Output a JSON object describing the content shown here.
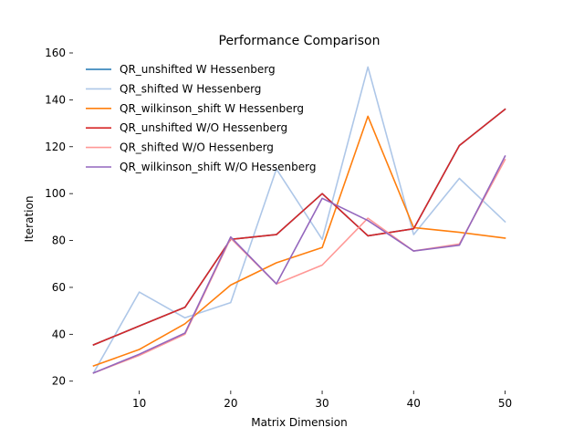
{
  "chart_data": {
    "type": "line",
    "title": "Performance Comparison",
    "xlabel": "Matrix Dimension",
    "ylabel": "Iteration",
    "xlim": [
      2.75,
      52.25
    ],
    "ylim": [
      16,
      160
    ],
    "xticks": [
      10,
      20,
      30,
      40,
      50
    ],
    "yticks": [
      20,
      40,
      60,
      80,
      100,
      120,
      140,
      160
    ],
    "grid": false,
    "legend_placement": "top-left",
    "x": [
      5,
      10,
      15,
      20,
      25,
      30,
      35,
      40,
      45,
      50
    ],
    "series": [
      {
        "name": "QR_unshifted W Hessenberg",
        "color": "#1f77b4",
        "values": [
          35.5,
          43.5,
          51.5,
          80.5,
          82.5,
          100,
          82,
          85,
          120.5,
          136
        ]
      },
      {
        "name": "QR_shifted W Hessenberg",
        "color": "#aec7e8",
        "values": [
          23.5,
          58,
          47,
          53.5,
          110.5,
          80.5,
          154,
          82.5,
          106.5,
          88
        ]
      },
      {
        "name": "QR_wilkinson_shift W Hessenberg",
        "color": "#ff7f0e",
        "values": [
          26.5,
          33.5,
          44.5,
          61,
          70.5,
          77,
          133,
          85.5,
          83.5,
          81
        ]
      },
      {
        "name": "QR_unshifted W/O Hessenberg",
        "color": "#d62728",
        "values": [
          35.5,
          43.5,
          51.5,
          80.5,
          82.5,
          100,
          82,
          85,
          120.5,
          136
        ]
      },
      {
        "name": "QR_shifted W/O Hessenberg",
        "color": "#ff9896",
        "values": [
          23.5,
          31,
          40,
          81,
          61.5,
          69.5,
          89.5,
          75.5,
          78.5,
          114.5
        ]
      },
      {
        "name": "QR_wilkinson_shift W/O Hessenberg",
        "color": "#9467bd",
        "values": [
          23.5,
          31.5,
          40.5,
          81.5,
          61.5,
          98,
          88.5,
          75.5,
          78,
          116
        ]
      }
    ]
  }
}
